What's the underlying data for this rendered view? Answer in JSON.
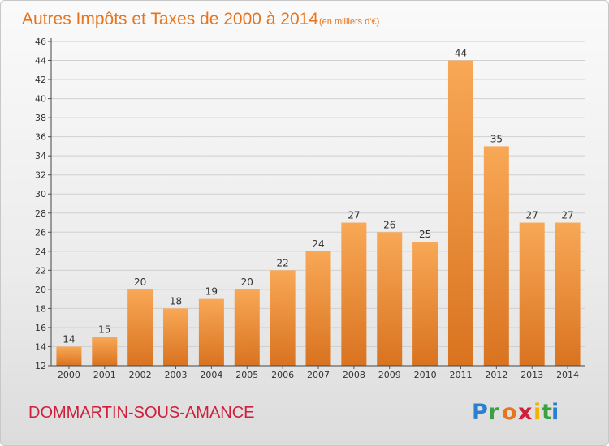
{
  "chart_data": {
    "type": "bar",
    "title": "Autres Impôts et Taxes de 2000 à 2014",
    "subtitle": "(en milliers d'€)",
    "categories": [
      "2000",
      "2001",
      "2002",
      "2003",
      "2004",
      "2005",
      "2006",
      "2007",
      "2008",
      "2009",
      "2010",
      "2011",
      "2012",
      "2013",
      "2014"
    ],
    "values": [
      14,
      15,
      20,
      18,
      19,
      20,
      22,
      24,
      27,
      26,
      25,
      44,
      35,
      27,
      27
    ],
    "ylim": [
      12,
      46
    ],
    "yticks": [
      12,
      14,
      16,
      18,
      20,
      22,
      24,
      26,
      28,
      30,
      32,
      34,
      36,
      38,
      40,
      42,
      44,
      46
    ],
    "grid": true,
    "xlabel": "",
    "ylabel": ""
  },
  "footer": {
    "location": "DOMMARTIN-SOUS-AMANCE",
    "brand": "Proxiti"
  },
  "colors": {
    "title": "#e8741c",
    "bar_top": "#f8a856",
    "bar_bottom": "#d97320",
    "grid": "#d0d0d0",
    "location": "#cf1f3a"
  }
}
